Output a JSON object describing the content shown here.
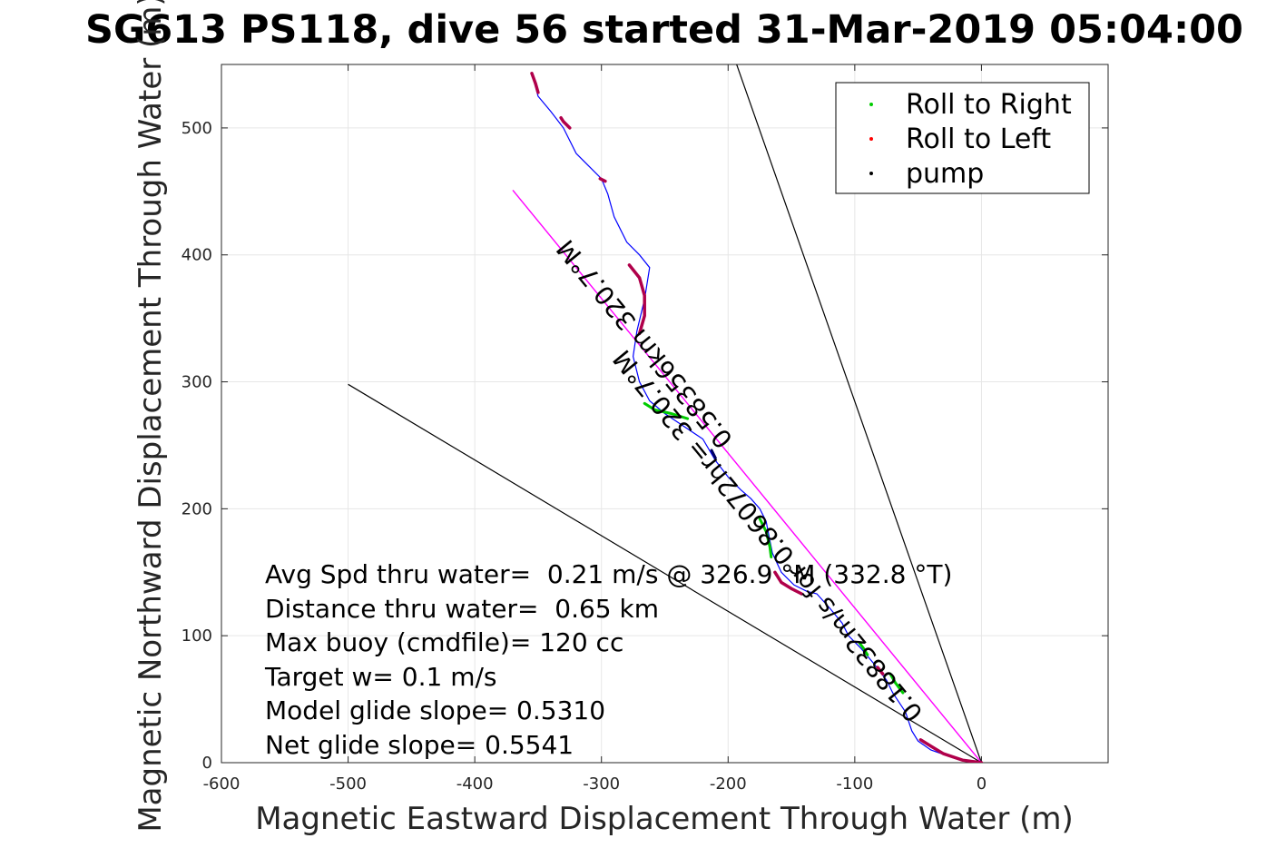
{
  "chart_data": {
    "type": "line",
    "title": "SG613 PS118, dive 56 started 31-Mar-2019 05:04:00",
    "xlabel": "Magnetic Eastward Displacement Through Water (m)",
    "ylabel": "Magnetic Northward Displacement Through Water (m)",
    "xlim": [
      -600,
      100
    ],
    "ylim": [
      0,
      550
    ],
    "xticks": [
      -600,
      -500,
      -400,
      -300,
      -200,
      -100,
      0
    ],
    "yticks": [
      0,
      100,
      200,
      300,
      400,
      500
    ],
    "grid": true,
    "legend": {
      "placement": "top-right",
      "entries": [
        {
          "label": "Roll to Right",
          "color": "#00cc00"
        },
        {
          "label": "Roll to Left",
          "color": "#ff0000"
        },
        {
          "label": "pump",
          "color": "#000000"
        }
      ]
    },
    "series": [
      {
        "color": "#0000ff",
        "x": [
          0,
          -20,
          -40,
          -50,
          -55,
          -60,
          -70,
          -75,
          -85,
          -95,
          -105,
          -110,
          -120,
          -130,
          -138,
          -148,
          -158,
          -165,
          -168,
          -170,
          -175,
          -182,
          -190,
          -200,
          -210,
          -220,
          -235,
          -250,
          -262,
          -270,
          -275,
          -272,
          -266,
          -262,
          -270,
          -280,
          -285,
          -290,
          -295,
          -300,
          -310,
          -320,
          -325,
          -330,
          -340,
          -350,
          -355
        ],
        "y": [
          0,
          3,
          10,
          17,
          25,
          40,
          55,
          65,
          78,
          90,
          100,
          110,
          122,
          133,
          135,
          140,
          150,
          165,
          180,
          190,
          200,
          208,
          215,
          225,
          238,
          255,
          265,
          275,
          285,
          300,
          320,
          340,
          365,
          390,
          400,
          410,
          420,
          430,
          448,
          460,
          470,
          480,
          490,
          500,
          513,
          525,
          543
        ]
      },
      {
        "color": "#ff00ff",
        "x": [
          0,
          -370
        ],
        "y": [
          0,
          451
        ]
      }
    ],
    "envelope_lines": [
      {
        "x": [
          0,
          -500
        ],
        "y": [
          0,
          298
        ],
        "color": "#000000"
      },
      {
        "x": [
          0,
          -194
        ],
        "y": [
          0,
          552
        ],
        "color": "#000000"
      }
    ],
    "roll_right_segments": [
      {
        "x": [
          -62,
          -68,
          -72
        ],
        "y": [
          55,
          63,
          70
        ]
      },
      {
        "x": [
          -90,
          -93,
          -96
        ],
        "y": [
          85,
          90,
          94
        ]
      },
      {
        "x": [
          -166,
          -167,
          -170,
          -175
        ],
        "y": [
          162,
          170,
          182,
          192
        ]
      },
      {
        "x": [
          -232,
          -245,
          -258,
          -266
        ],
        "y": [
          271,
          275,
          278,
          283
        ]
      }
    ],
    "roll_left_segments": [
      {
        "x": [
          0,
          -15,
          -30,
          -40,
          -48
        ],
        "y": [
          0,
          2,
          7,
          13,
          18
        ]
      },
      {
        "x": [
          -78,
          -82
        ],
        "y": [
          70,
          75
        ]
      },
      {
        "x": [
          -142,
          -150,
          -158,
          -163
        ],
        "y": [
          133,
          137,
          142,
          150
        ]
      },
      {
        "x": [
          -270,
          -266,
          -266,
          -270,
          -278
        ],
        "y": [
          338,
          352,
          368,
          382,
          392
        ]
      },
      {
        "x": [
          -297,
          -301
        ],
        "y": [
          458,
          460
        ]
      },
      {
        "x": [
          -325,
          -330,
          -332
        ],
        "y": [
          500,
          505,
          508
        ]
      },
      {
        "x": [
          -350,
          -352,
          -355
        ],
        "y": [
          528,
          535,
          543
        ]
      }
    ],
    "pump_segments": [
      {
        "x": [
          -210,
          -213
        ],
        "y": [
          240,
          246
        ]
      }
    ],
    "annotations": [
      "Avg Spd thru water=  0.21 m/s @ 326.9 °M (332.8 °T)",
      "Distance thru water=  0.65 km",
      "Max buoy (cmdfile)= 120 cc",
      "Target w= 0.1 m/s",
      "Model glide slope= 0.5310",
      "Net glide slope= 0.5541"
    ],
    "line_labels": {
      "upper": "0.58356km 320.7°M",
      "lower": "0.18832m/s for 0.86072hr= 320.7°M"
    }
  }
}
